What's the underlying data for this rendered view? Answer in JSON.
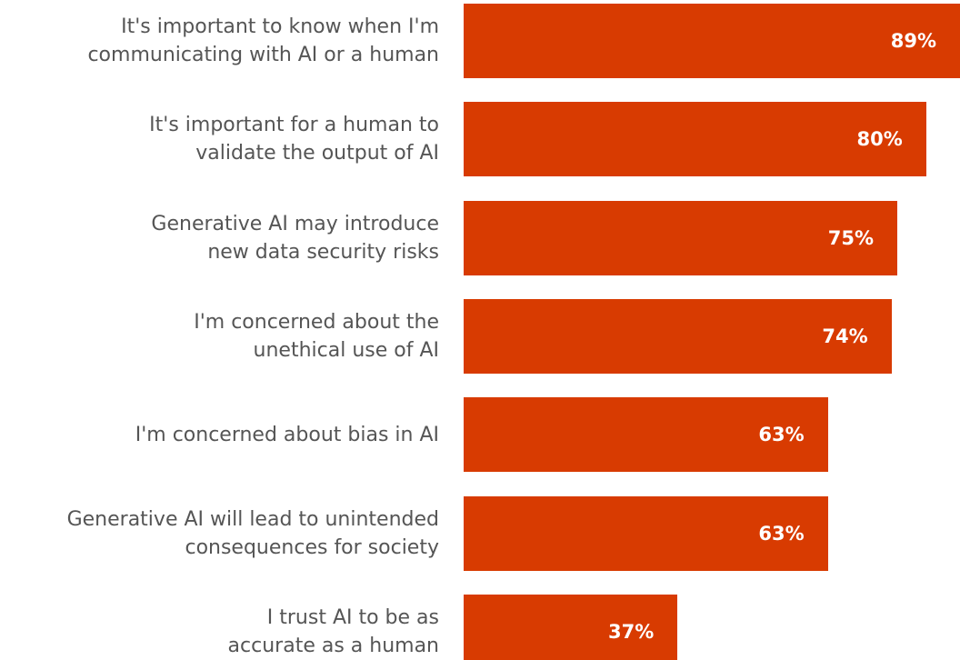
{
  "chart_data": {
    "type": "bar",
    "orientation": "horizontal",
    "categories": [
      "It's important to know when I'm\ncommunicating with AI or a human",
      "It's important for a human to\nvalidate the output of AI",
      "Generative AI may introduce\nnew data security risks",
      "I'm concerned about the\nunethical use of AI",
      "I'm concerned about bias in AI",
      "Generative AI will lead to unintended\nconsequences for society",
      "I trust AI to be as\naccurate as a human"
    ],
    "values": [
      89,
      80,
      75,
      74,
      63,
      63,
      37
    ],
    "value_labels": [
      "89%",
      "80%",
      "75%",
      "74%",
      "63%",
      "63%",
      "37%"
    ],
    "color": "#d83b01"
  }
}
